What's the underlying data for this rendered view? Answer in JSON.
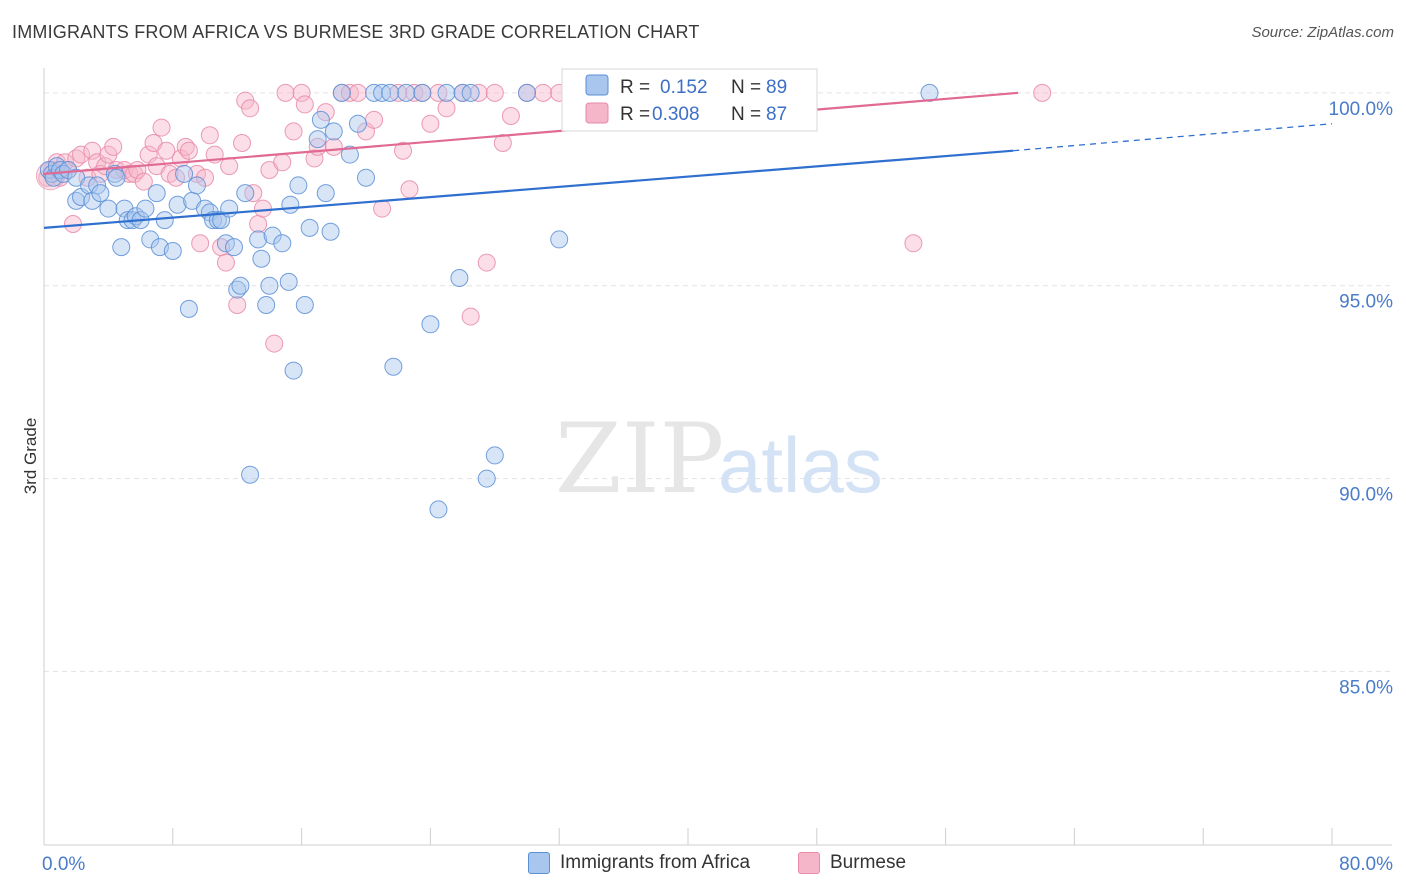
{
  "title": "IMMIGRANTS FROM AFRICA VS BURMESE 3RD GRADE CORRELATION CHART",
  "source": "Source: ZipAtlas.com",
  "watermark": {
    "zip": "ZIP",
    "atlas": "atlas"
  },
  "colors": {
    "africa_fill": "#a9c6ee",
    "africa_stroke": "#5b8fd6",
    "africa_line": "#2f6fcf",
    "burmese_fill": "#f6b6ca",
    "burmese_stroke": "#e88aa8",
    "burmese_line": "#e06a93",
    "axis_label": "#4a7cc9",
    "grid": "#e3e3e3"
  },
  "stats_box": {
    "rows": [
      {
        "series": "africa",
        "r_label": "R =",
        "r_value": "0.152",
        "n_label": "N =",
        "n_value": "89"
      },
      {
        "series": "burmese",
        "r_label": "R =",
        "r_value": "0.308",
        "n_label": "N =",
        "n_value": "87"
      }
    ]
  },
  "legend": {
    "africa": "Immigrants from Africa",
    "burmese": "Burmese"
  },
  "chart_data": {
    "type": "scatter",
    "title": "IMMIGRANTS FROM AFRICA VS BURMESE 3RD GRADE CORRELATION CHART",
    "xlabel": "",
    "ylabel": "3rd Grade",
    "xlim": [
      0,
      80
    ],
    "ylim": [
      80.5,
      100.8
    ],
    "x_tick_labels": [
      "0.0%",
      "80.0%"
    ],
    "y_ticks": [
      85,
      90,
      95,
      100
    ],
    "y_tick_labels": [
      "85.0%",
      "90.0%",
      "95.0%",
      "100.0%"
    ],
    "grid": true,
    "legend_position": "bottom-center",
    "series": [
      {
        "name": "Immigrants from Africa",
        "key": "africa",
        "r": 0.152,
        "n": 89,
        "trend": {
          "x0": 0,
          "y0": 96.5,
          "x1": 60.2,
          "y1": 98.5,
          "dash_to_x": 80,
          "dash_to_y": 99.2
        },
        "points": [
          [
            0.3,
            98.0
          ],
          [
            0.5,
            97.9
          ],
          [
            0.6,
            97.8
          ],
          [
            0.8,
            98.1
          ],
          [
            1.0,
            98.0
          ],
          [
            1.2,
            97.9
          ],
          [
            1.5,
            98.0
          ],
          [
            2.0,
            97.8
          ],
          [
            2.0,
            97.2
          ],
          [
            2.3,
            97.3
          ],
          [
            2.8,
            97.6
          ],
          [
            3.0,
            97.2
          ],
          [
            3.3,
            97.6
          ],
          [
            3.5,
            97.4
          ],
          [
            4.0,
            97.0
          ],
          [
            4.4,
            97.9
          ],
          [
            4.5,
            97.8
          ],
          [
            4.8,
            96.0
          ],
          [
            5.0,
            97.0
          ],
          [
            5.2,
            96.7
          ],
          [
            5.5,
            96.7
          ],
          [
            5.7,
            96.8
          ],
          [
            6.0,
            96.7
          ],
          [
            6.3,
            97.0
          ],
          [
            6.6,
            96.2
          ],
          [
            7.0,
            97.4
          ],
          [
            7.2,
            96.0
          ],
          [
            7.5,
            96.7
          ],
          [
            8.0,
            95.9
          ],
          [
            8.3,
            97.1
          ],
          [
            8.7,
            97.9
          ],
          [
            9.0,
            94.4
          ],
          [
            9.2,
            97.2
          ],
          [
            9.5,
            97.6
          ],
          [
            10.0,
            97.0
          ],
          [
            10.3,
            96.9
          ],
          [
            10.5,
            96.7
          ],
          [
            10.8,
            96.7
          ],
          [
            11.0,
            96.7
          ],
          [
            11.3,
            96.1
          ],
          [
            11.5,
            97.0
          ],
          [
            11.8,
            96.0
          ],
          [
            12.0,
            94.9
          ],
          [
            12.2,
            95.0
          ],
          [
            12.5,
            97.4
          ],
          [
            12.8,
            90.1
          ],
          [
            13.3,
            96.2
          ],
          [
            13.5,
            95.7
          ],
          [
            13.8,
            94.5
          ],
          [
            14.0,
            95.0
          ],
          [
            14.2,
            96.3
          ],
          [
            14.8,
            96.1
          ],
          [
            15.2,
            95.1
          ],
          [
            15.3,
            97.1
          ],
          [
            15.5,
            92.8
          ],
          [
            15.8,
            97.6
          ],
          [
            16.2,
            94.5
          ],
          [
            16.5,
            96.5
          ],
          [
            17.0,
            98.8
          ],
          [
            17.2,
            99.3
          ],
          [
            17.5,
            97.4
          ],
          [
            17.8,
            96.4
          ],
          [
            18.0,
            99.0
          ],
          [
            18.5,
            100.0
          ],
          [
            19.0,
            98.4
          ],
          [
            19.5,
            99.2
          ],
          [
            20.0,
            97.8
          ],
          [
            20.5,
            100.0
          ],
          [
            21.0,
            100.0
          ],
          [
            21.5,
            100.0
          ],
          [
            21.7,
            92.9
          ],
          [
            22.5,
            100.0
          ],
          [
            23.5,
            100.0
          ],
          [
            24.0,
            94.0
          ],
          [
            24.5,
            89.2
          ],
          [
            25.0,
            100.0
          ],
          [
            25.8,
            95.2
          ],
          [
            26.0,
            100.0
          ],
          [
            26.5,
            100.0
          ],
          [
            27.5,
            90.0
          ],
          [
            28.0,
            90.6
          ],
          [
            30.0,
            100.0
          ],
          [
            32.0,
            96.2
          ],
          [
            34.0,
            100.0
          ],
          [
            36.0,
            100.0
          ],
          [
            38.0,
            100.0
          ],
          [
            38.5,
            100.0
          ],
          [
            40.0,
            100.0
          ],
          [
            55.0,
            100.0
          ]
        ]
      },
      {
        "name": "Burmese",
        "key": "burmese",
        "r": 0.308,
        "n": 87,
        "trend": {
          "x0": 0,
          "y0": 97.9,
          "x1": 60.5,
          "y1": 100.0
        },
        "points": [
          [
            0.2,
            97.8
          ],
          [
            0.5,
            98.0
          ],
          [
            0.8,
            98.2
          ],
          [
            1.0,
            97.8
          ],
          [
            1.3,
            98.2
          ],
          [
            1.5,
            98.0
          ],
          [
            1.8,
            96.6
          ],
          [
            2.0,
            98.3
          ],
          [
            2.3,
            98.4
          ],
          [
            2.7,
            97.8
          ],
          [
            3.0,
            98.5
          ],
          [
            3.3,
            98.2
          ],
          [
            3.5,
            97.9
          ],
          [
            3.8,
            98.1
          ],
          [
            4.0,
            98.4
          ],
          [
            4.3,
            98.6
          ],
          [
            4.5,
            98.0
          ],
          [
            5.0,
            98.0
          ],
          [
            5.3,
            97.9
          ],
          [
            5.6,
            97.9
          ],
          [
            5.8,
            98.0
          ],
          [
            6.2,
            97.7
          ],
          [
            6.5,
            98.4
          ],
          [
            6.8,
            98.7
          ],
          [
            7.0,
            98.1
          ],
          [
            7.3,
            99.1
          ],
          [
            7.6,
            98.5
          ],
          [
            7.8,
            97.9
          ],
          [
            8.2,
            97.8
          ],
          [
            8.5,
            98.3
          ],
          [
            8.8,
            98.6
          ],
          [
            9.0,
            98.5
          ],
          [
            9.5,
            97.9
          ],
          [
            9.7,
            96.1
          ],
          [
            10.0,
            97.8
          ],
          [
            10.3,
            98.9
          ],
          [
            10.6,
            98.4
          ],
          [
            11.0,
            96.0
          ],
          [
            11.3,
            95.6
          ],
          [
            11.5,
            98.1
          ],
          [
            12.0,
            94.5
          ],
          [
            12.3,
            98.7
          ],
          [
            12.5,
            99.8
          ],
          [
            12.8,
            99.6
          ],
          [
            13.0,
            97.4
          ],
          [
            13.3,
            96.6
          ],
          [
            13.6,
            97.0
          ],
          [
            14.0,
            98.0
          ],
          [
            14.3,
            93.5
          ],
          [
            14.8,
            98.2
          ],
          [
            15.0,
            100.0
          ],
          [
            15.5,
            99.0
          ],
          [
            16.0,
            100.0
          ],
          [
            16.2,
            99.7
          ],
          [
            16.8,
            98.3
          ],
          [
            17.0,
            98.6
          ],
          [
            17.5,
            99.5
          ],
          [
            18.0,
            98.6
          ],
          [
            18.5,
            100.0
          ],
          [
            19.0,
            100.0
          ],
          [
            19.5,
            100.0
          ],
          [
            20.0,
            99.0
          ],
          [
            20.5,
            99.3
          ],
          [
            21.0,
            97.0
          ],
          [
            22.0,
            100.0
          ],
          [
            22.3,
            98.5
          ],
          [
            22.7,
            97.5
          ],
          [
            23.0,
            100.0
          ],
          [
            23.5,
            100.0
          ],
          [
            24.0,
            99.2
          ],
          [
            24.5,
            100.0
          ],
          [
            25.0,
            99.6
          ],
          [
            26.0,
            100.0
          ],
          [
            26.5,
            94.2
          ],
          [
            27.0,
            100.0
          ],
          [
            27.5,
            95.6
          ],
          [
            28.0,
            100.0
          ],
          [
            28.5,
            98.7
          ],
          [
            29.0,
            99.4
          ],
          [
            30.0,
            100.0
          ],
          [
            31.0,
            100.0
          ],
          [
            32.0,
            100.0
          ],
          [
            33.0,
            100.0
          ],
          [
            35.0,
            100.0
          ],
          [
            36.0,
            100.0
          ],
          [
            54.0,
            96.1
          ],
          [
            62.0,
            100.0
          ]
        ]
      }
    ]
  }
}
